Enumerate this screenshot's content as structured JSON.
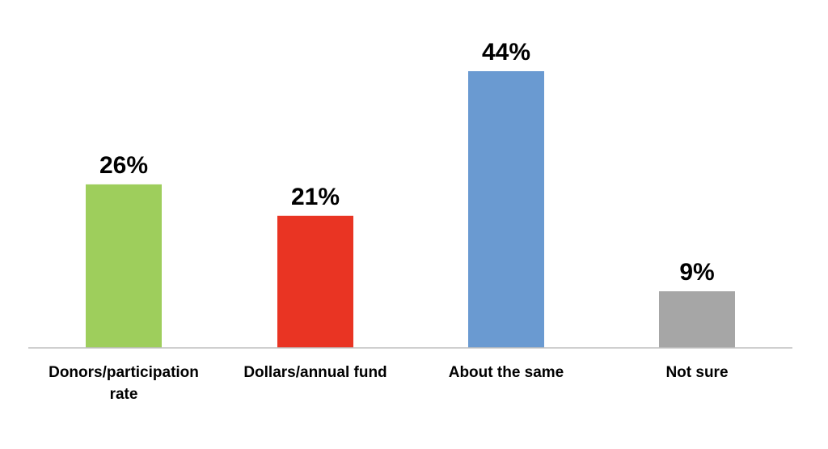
{
  "chart_data": {
    "type": "bar",
    "categories": [
      "Donors/participation rate",
      "Dollars/annual fund",
      "About the same",
      "Not sure"
    ],
    "category_lines": [
      [
        "Donors/participation",
        "rate"
      ],
      [
        "Dollars/annual fund"
      ],
      [
        "About the same"
      ],
      [
        "Not sure"
      ]
    ],
    "values": [
      26,
      21,
      44,
      9
    ],
    "data_labels": [
      "26%",
      "21%",
      "44%",
      "9%"
    ],
    "colors": [
      "#9ece5c",
      "#e93423",
      "#6a9ad1",
      "#a6a6a6"
    ],
    "title": "",
    "xlabel": "",
    "ylabel": "",
    "ylim": [
      0,
      44
    ],
    "grid": false,
    "legend": "none"
  }
}
